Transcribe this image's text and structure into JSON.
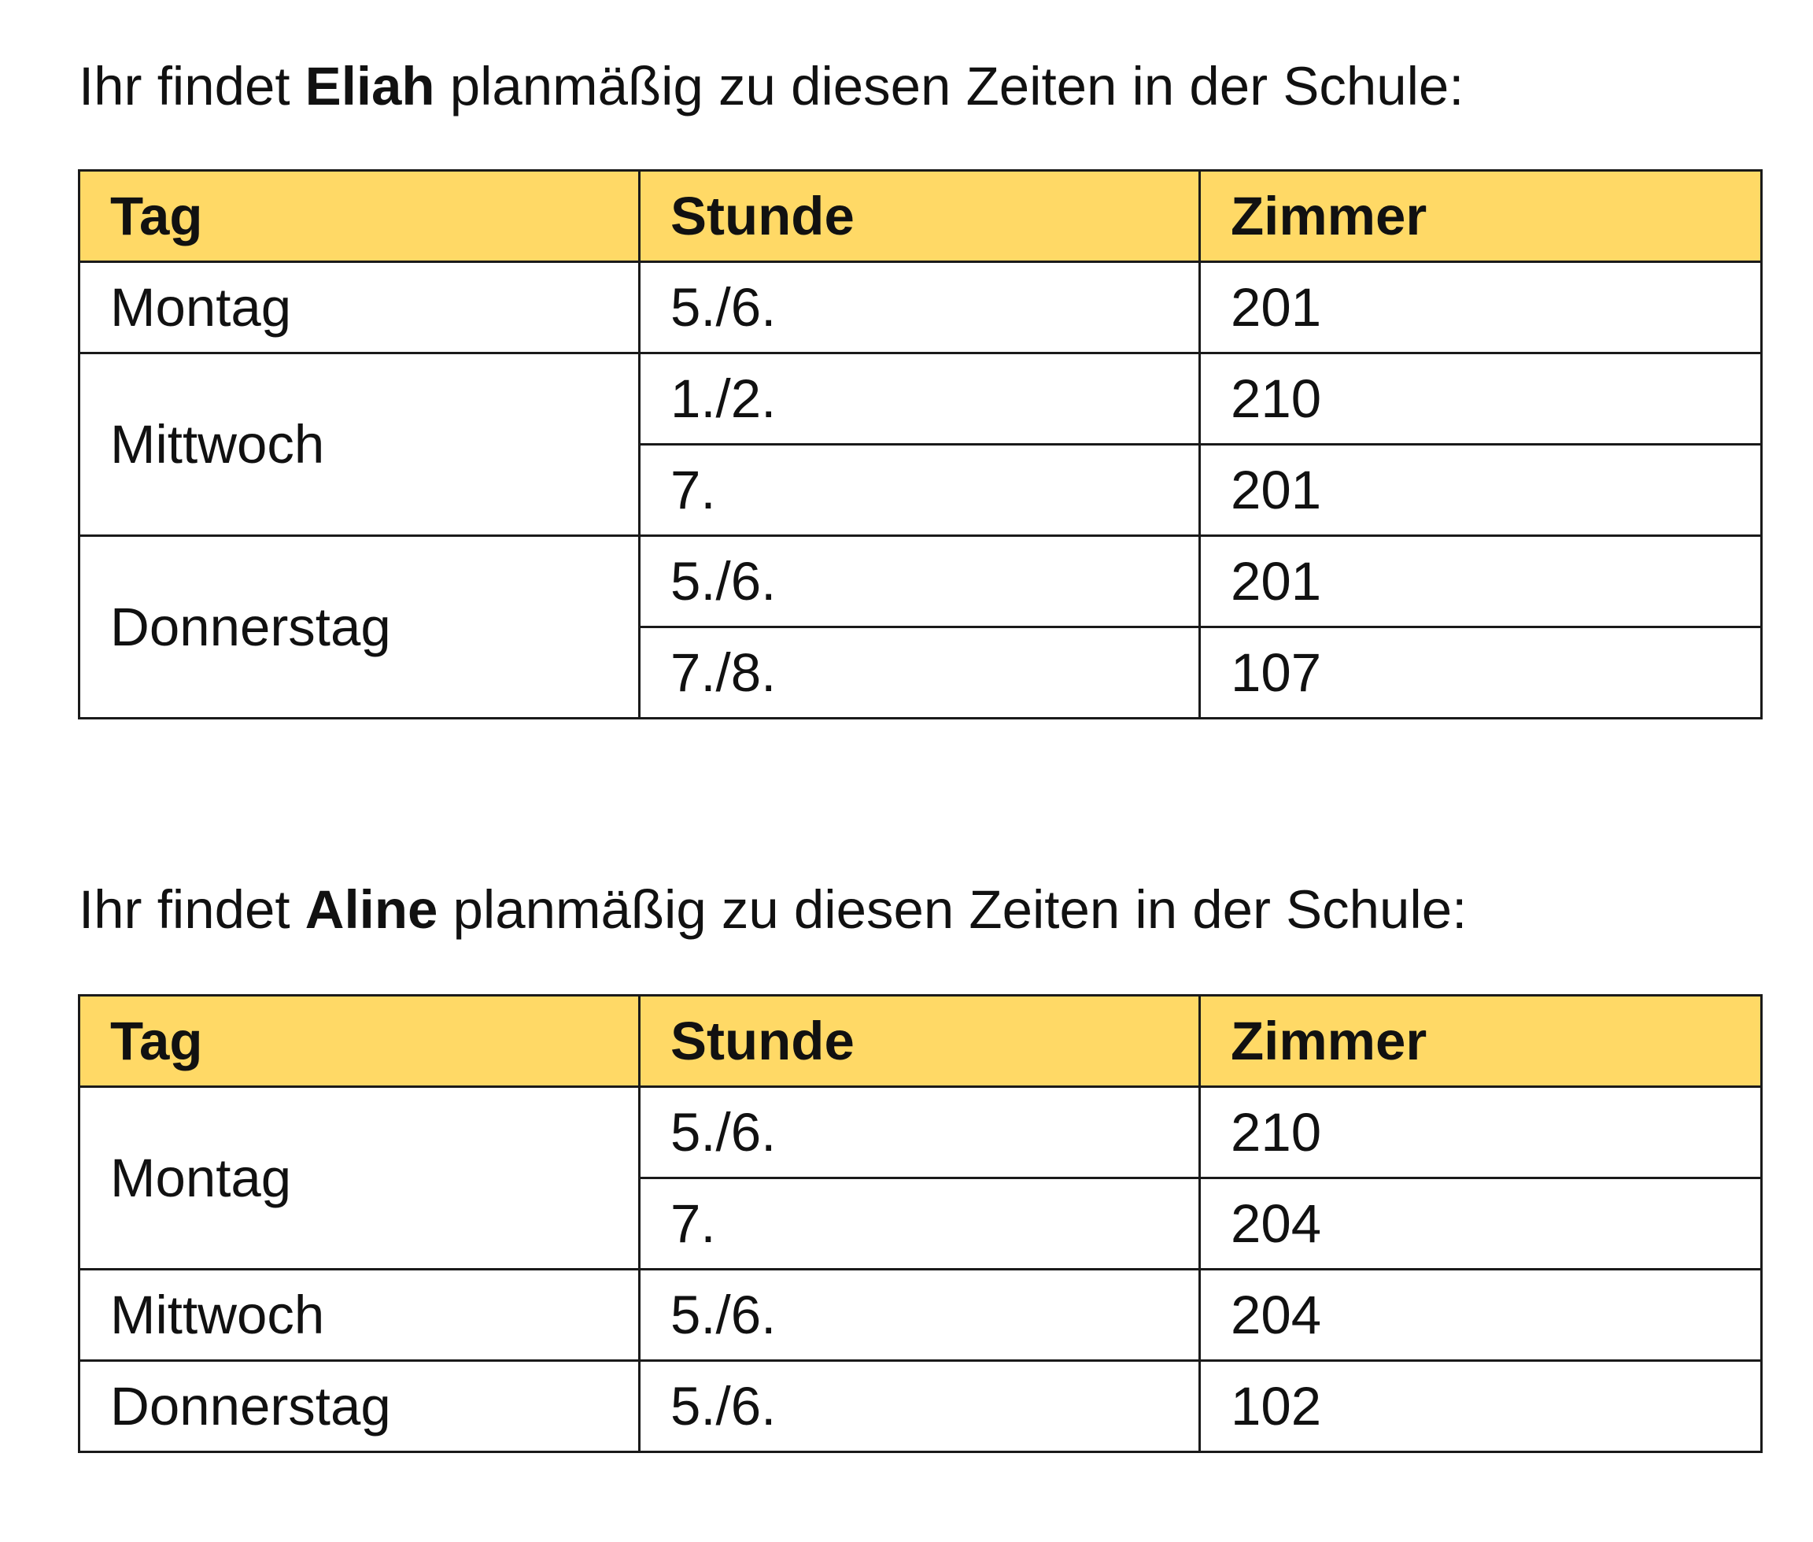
{
  "sections": [
    {
      "intro_before": "Ihr findet ",
      "person": "Eliah",
      "intro_after": " planmäßig zu diesen Zeiten in der Schule:",
      "headers": [
        "Tag",
        "Stunde",
        "Zimmer"
      ],
      "rows": [
        {
          "day": "Montag",
          "slots": [
            {
              "stunde": "5./6.",
              "zimmer": "201"
            }
          ]
        },
        {
          "day": "Mittwoch",
          "slots": [
            {
              "stunde": "1./2.",
              "zimmer": "210"
            },
            {
              "stunde": "7.",
              "zimmer": "201"
            }
          ]
        },
        {
          "day": "Donnerstag",
          "slots": [
            {
              "stunde": "5./6.",
              "zimmer": "201"
            },
            {
              "stunde": "7./8.",
              "zimmer": "107"
            }
          ]
        }
      ]
    },
    {
      "intro_before": "Ihr findet ",
      "person": "Aline",
      "intro_after": " planmäßig zu diesen Zeiten in der Schule:",
      "headers": [
        "Tag",
        "Stunde",
        "Zimmer"
      ],
      "rows": [
        {
          "day": "Montag",
          "slots": [
            {
              "stunde": "5./6.",
              "zimmer": "210"
            },
            {
              "stunde": "7.",
              "zimmer": "204"
            }
          ]
        },
        {
          "day": "Mittwoch",
          "slots": [
            {
              "stunde": "5./6.",
              "zimmer": "204"
            }
          ]
        },
        {
          "day": "Donnerstag",
          "slots": [
            {
              "stunde": "5./6.",
              "zimmer": "102"
            }
          ]
        }
      ]
    }
  ],
  "colors": {
    "header_background": "#ffd966",
    "border": "#1a1a1a",
    "text": "#111111"
  }
}
